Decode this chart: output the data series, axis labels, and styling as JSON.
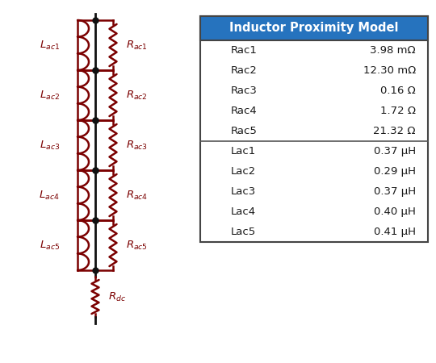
{
  "title": "Inductor Proximity Model",
  "title_bg": "#2673BE",
  "title_color": "#FFFFFF",
  "rows_r": [
    [
      "Rac1",
      "3.98 mΩ"
    ],
    [
      "Rac2",
      "12.30 mΩ"
    ],
    [
      "Rac3",
      "0.16 Ω"
    ],
    [
      "Rac4",
      "1.72 Ω"
    ],
    [
      "Rac5",
      "21.32 Ω"
    ]
  ],
  "rows_l": [
    [
      "Lac1",
      "0.37 μH"
    ],
    [
      "Lac2",
      "0.29 μH"
    ],
    [
      "Lac3",
      "0.37 μH"
    ],
    [
      "Lac4",
      "0.40 μH"
    ],
    [
      "Lac5",
      "0.41 μH"
    ]
  ],
  "circuit_color": "#7B0000",
  "wire_color": "#111111",
  "label_color": "#7B0000",
  "fig_w": 5.4,
  "fig_h": 4.5,
  "dpi": 100
}
